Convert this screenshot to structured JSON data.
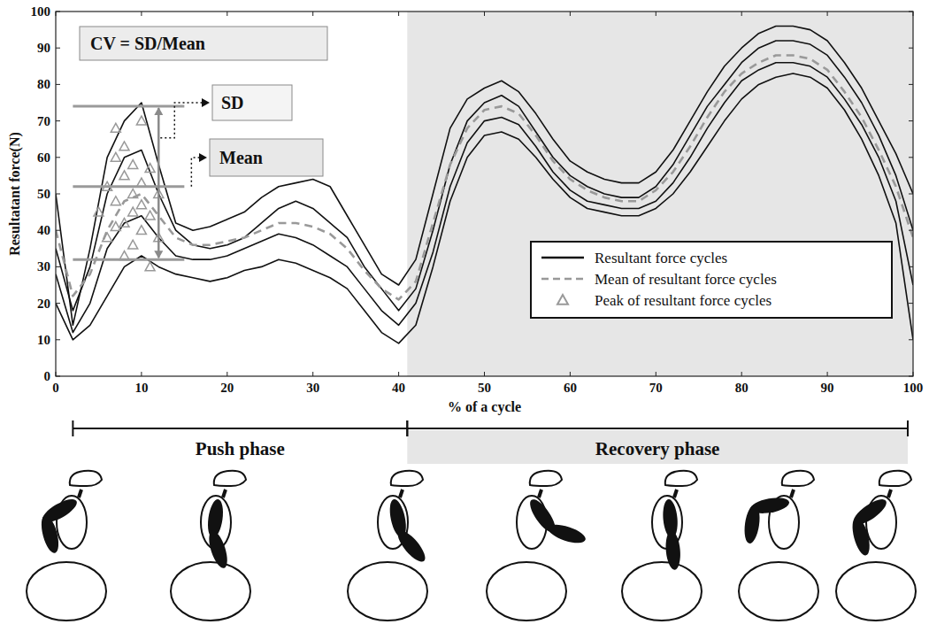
{
  "chart_data": {
    "type": "line",
    "x_label": "% of a cycle",
    "y_label": "Resultatant force(N)",
    "xlim": [
      0,
      100
    ],
    "ylim": [
      0,
      100
    ],
    "xticks": [
      0,
      10,
      20,
      30,
      40,
      50,
      60,
      70,
      80,
      90,
      100
    ],
    "yticks": [
      0,
      10,
      20,
      30,
      40,
      50,
      60,
      70,
      80,
      90,
      100
    ],
    "grid": false,
    "legend": "right",
    "x": [
      0,
      2,
      4,
      6,
      8,
      10,
      12,
      14,
      16,
      18,
      20,
      22,
      24,
      26,
      28,
      30,
      32,
      34,
      36,
      38,
      40,
      42,
      44,
      46,
      48,
      50,
      52,
      54,
      56,
      58,
      60,
      62,
      64,
      66,
      68,
      70,
      72,
      74,
      76,
      78,
      80,
      82,
      84,
      86,
      88,
      90,
      92,
      94,
      96,
      98,
      100
    ],
    "series": [
      {
        "name": "Resultant force cycles",
        "type": "line",
        "color": "#111111",
        "line_style": "solid",
        "values": [
          50,
          14,
          35,
          60,
          70,
          75,
          58,
          42,
          40,
          41,
          43,
          45,
          49,
          52,
          53,
          54,
          52,
          44,
          36,
          28,
          25,
          32,
          50,
          68,
          76,
          79,
          81,
          78,
          72,
          65,
          59,
          56,
          54,
          53,
          53,
          56,
          62,
          70,
          78,
          85,
          90,
          94,
          96,
          96,
          95,
          92,
          86,
          79,
          70,
          61,
          50
        ]
      },
      {
        "name": "Resultant force cycles",
        "type": "line",
        "color": "#111111",
        "line_style": "solid",
        "values": [
          20,
          10,
          14,
          22,
          30,
          33,
          30,
          28,
          27,
          26,
          27,
          29,
          30,
          32,
          31,
          29,
          27,
          24,
          18,
          12,
          9,
          14,
          30,
          48,
          60,
          66,
          67,
          65,
          60,
          54,
          49,
          46,
          45,
          44,
          44,
          46,
          50,
          56,
          63,
          70,
          76,
          80,
          82,
          83,
          82,
          79,
          73,
          65,
          55,
          42,
          10
        ]
      },
      {
        "name": "Resultant force cycles",
        "type": "line",
        "color": "#111111",
        "line_style": "solid",
        "values": [
          35,
          18,
          30,
          50,
          60,
          62,
          50,
          40,
          36,
          35,
          36,
          38,
          42,
          46,
          48,
          46,
          42,
          38,
          30,
          24,
          18,
          24,
          40,
          58,
          70,
          75,
          77,
          74,
          67,
          60,
          55,
          52,
          50,
          49,
          49,
          52,
          58,
          66,
          74,
          80,
          86,
          90,
          92,
          92,
          91,
          88,
          82,
          75,
          66,
          55,
          40
        ]
      },
      {
        "name": "Resultant force cycles",
        "type": "line",
        "color": "#111111",
        "line_style": "solid",
        "values": [
          28,
          12,
          20,
          35,
          42,
          44,
          38,
          33,
          32,
          32,
          33,
          35,
          37,
          39,
          38,
          36,
          33,
          30,
          24,
          18,
          14,
          20,
          34,
          52,
          64,
          70,
          71,
          69,
          63,
          56,
          51,
          48,
          47,
          46,
          46,
          48,
          53,
          60,
          68,
          75,
          81,
          84,
          86,
          86,
          85,
          82,
          76,
          69,
          60,
          48,
          25
        ]
      },
      {
        "name": "Mean of resultant force cycles",
        "type": "line",
        "color": "#999999",
        "line_style": "dashed",
        "values": [
          40,
          22,
          28,
          40,
          48,
          50,
          44,
          38,
          36,
          36,
          37,
          38,
          40,
          42,
          42,
          41,
          39,
          35,
          29,
          24,
          21,
          26,
          42,
          58,
          68,
          73,
          74,
          72,
          66,
          59,
          54,
          51,
          49,
          48,
          48,
          51,
          56,
          63,
          71,
          78,
          83,
          86,
          88,
          88,
          87,
          84,
          78,
          71,
          62,
          52,
          38
        ]
      },
      {
        "name": "Peak of resultant force cycles",
        "type": "scatter",
        "color": "#999999",
        "marker": "triangle",
        "x": [
          5,
          6,
          6,
          7,
          7,
          7,
          7,
          8,
          8,
          8,
          8,
          9,
          9,
          9,
          9,
          10,
          10,
          10,
          10,
          11,
          11,
          11,
          12,
          12
        ],
        "values": [
          45,
          52,
          38,
          60,
          48,
          68,
          41,
          55,
          42,
          33,
          63,
          50,
          58,
          45,
          36,
          70,
          53,
          47,
          40,
          57,
          44,
          30,
          50,
          38
        ]
      }
    ],
    "annotations": {
      "formula": "CV = SD/Mean",
      "sd_label": "SD",
      "mean_label": "Mean",
      "mean": 52,
      "sd_range": [
        32,
        74
      ]
    },
    "phases": [
      {
        "label": "Push phase",
        "range": [
          2,
          41
        ]
      },
      {
        "label": "Recovery phase",
        "range": [
          41,
          100
        ]
      }
    ]
  }
}
